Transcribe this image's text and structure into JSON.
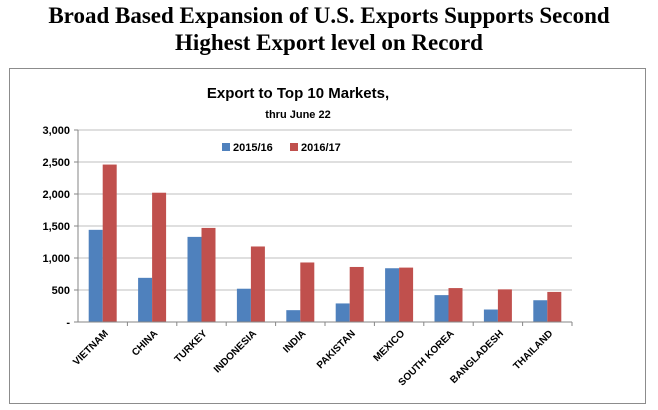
{
  "headline": {
    "line1": "Broad Based Expansion of U.S. Exports Supports Second",
    "line2": "Highest Export level on Record"
  },
  "chart_data": {
    "type": "bar",
    "title": "Export to Top 10 Markets,",
    "subtitle": "thru June 22",
    "xlabel": "",
    "ylabel": "",
    "ylim": [
      0,
      3000
    ],
    "yticks": [
      0,
      500,
      1000,
      1500,
      2000,
      2500,
      3000
    ],
    "ytick_labels": [
      "-",
      "500",
      "1,000",
      "1,500",
      "2,000",
      "2,500",
      "3,000"
    ],
    "grid": true,
    "legend": "top-center",
    "categories": [
      "VIETNAM",
      "CHINA",
      "TURKEY",
      "INDONESIA",
      "INDIA",
      "PAKISTAN",
      "MEXICO",
      "SOUTH KOREA",
      "BANGLADESH",
      "THAILAND"
    ],
    "series": [
      {
        "name": "2015/16",
        "color": "#4f81bd",
        "values": [
          1440,
          690,
          1330,
          520,
          185,
          290,
          840,
          420,
          195,
          340
        ]
      },
      {
        "name": "2016/17",
        "color": "#c0504d",
        "values": [
          2460,
          2020,
          1470,
          1180,
          930,
          860,
          850,
          530,
          510,
          470
        ]
      }
    ]
  }
}
